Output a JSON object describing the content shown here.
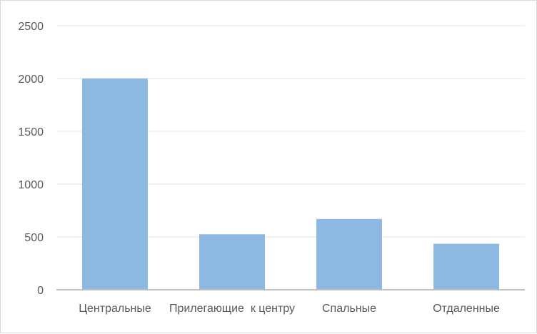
{
  "chart_data": {
    "type": "bar",
    "categories": [
      "Центральные",
      "Прилегающие  к центру",
      "Спальные",
      "Отдаленные"
    ],
    "values": [
      2000,
      525,
      670,
      435
    ],
    "ylim": [
      0,
      2500
    ],
    "yticks": [
      0,
      500,
      1000,
      1500,
      2000,
      2500
    ],
    "grid": true,
    "legend": "none",
    "title": "",
    "xlabel": "",
    "ylabel": "",
    "colors": {
      "bar": "#8db8e2",
      "grid": "#e6e6e6",
      "axis": "#bfbfbf",
      "text": "#595959"
    }
  }
}
